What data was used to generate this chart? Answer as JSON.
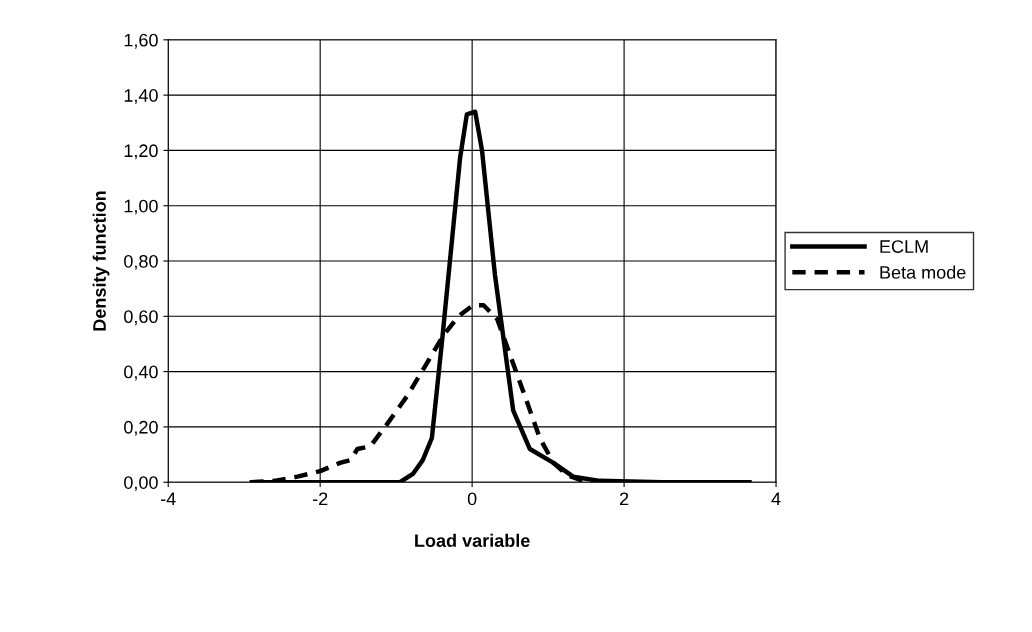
{
  "chart_data": {
    "type": "line",
    "xlabel": "Load variable",
    "ylabel": "Density function",
    "xlim": [
      -4,
      4
    ],
    "xticks": [
      -4,
      -2,
      0,
      2,
      4
    ],
    "ylim": [
      0,
      1.6
    ],
    "yticks": [
      {
        "value": 0,
        "label": "0,00"
      },
      {
        "value": 0.2,
        "label": "0,20"
      },
      {
        "value": 0.4,
        "label": "0,40"
      },
      {
        "value": 0.6,
        "label": "0,60"
      },
      {
        "value": 0.8,
        "label": "0,80"
      },
      {
        "value": 1.0,
        "label": "1,00"
      },
      {
        "value": 1.2,
        "label": "1,20"
      },
      {
        "value": 1.4,
        "label": "1,40"
      },
      {
        "value": 1.6,
        "label": "1,60"
      }
    ],
    "grid": true,
    "legend": "right",
    "marker": "none",
    "series": [
      {
        "name": "ECLM",
        "color": "#000000",
        "line_style": "solid",
        "x": [
          -2.9,
          -1.5,
          -0.95,
          -0.78,
          -0.65,
          -0.53,
          -0.4,
          -0.26,
          -0.16,
          -0.07,
          0.04,
          0.13,
          0.3,
          0.54,
          0.76,
          1.07,
          1.33,
          1.68,
          2.5,
          3.65
        ],
        "values": [
          0,
          0,
          0,
          0.03,
          0.08,
          0.16,
          0.5,
          0.89,
          1.17,
          1.33,
          1.34,
          1.2,
          0.75,
          0.26,
          0.12,
          0.07,
          0.02,
          0.005,
          0,
          0
        ]
      },
      {
        "name": "Beta mode",
        "color": "#000000",
        "line_style": "dashed",
        "x": [
          -2.92,
          -2.6,
          -2.3,
          -2.0,
          -1.74,
          -1.6,
          -1.51,
          -1.34,
          -1.12,
          -0.86,
          -0.64,
          -0.38,
          -0.18,
          0.01,
          0.15,
          0.33,
          0.46,
          0.67,
          0.89,
          1.07,
          1.25,
          1.46,
          1.6
        ],
        "values": [
          0,
          0.005,
          0.02,
          0.04,
          0.07,
          0.08,
          0.12,
          0.13,
          0.21,
          0.31,
          0.41,
          0.53,
          0.6,
          0.64,
          0.64,
          0.59,
          0.49,
          0.33,
          0.16,
          0.07,
          0.025,
          0.005,
          0
        ]
      }
    ]
  }
}
